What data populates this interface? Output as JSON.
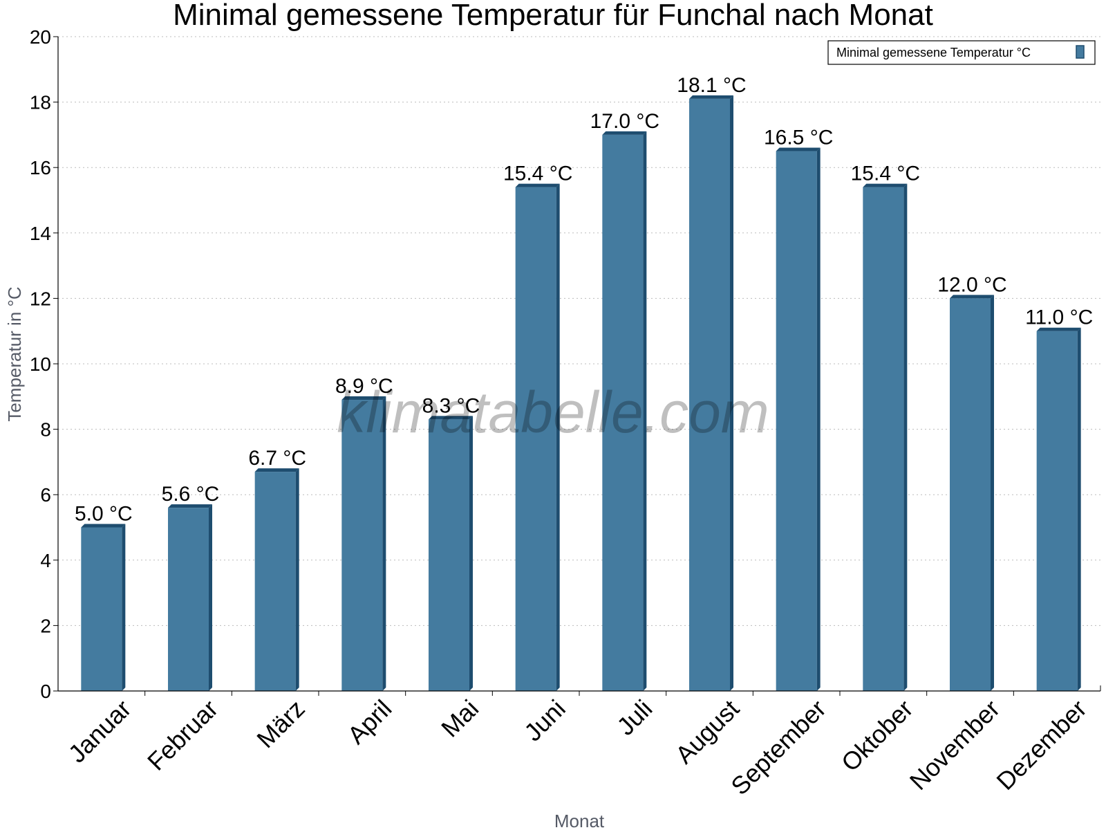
{
  "chart_data": {
    "type": "bar",
    "title": "Minimal gemessene Temperatur für Funchal nach Monat",
    "xlabel": "Monat",
    "ylabel": "Temperatur in °C",
    "ylim": [
      0,
      20
    ],
    "yticks": [
      0,
      2,
      4,
      6,
      8,
      10,
      12,
      14,
      16,
      18,
      20
    ],
    "grid": true,
    "legend_position": "top-right",
    "unit_suffix": " °C",
    "categories": [
      "Januar",
      "Februar",
      "März",
      "April",
      "Mai",
      "Juni",
      "Juli",
      "August",
      "September",
      "Oktober",
      "November",
      "Dezember"
    ],
    "series": [
      {
        "name": "Minimal gemessene Temperatur °C",
        "color": "#447b9f",
        "values": [
          5.0,
          5.6,
          6.7,
          8.9,
          8.3,
          15.4,
          17.0,
          18.1,
          16.5,
          15.4,
          12.0,
          11.0
        ]
      }
    ],
    "data_labels": [
      "5.0 °C",
      "5.6 °C",
      "6.7 °C",
      "8.9 °C",
      "8.3 °C",
      "15.4 °C",
      "17.0 °C",
      "18.1 °C",
      "16.5 °C",
      "15.4 °C",
      "12.0 °C",
      "11.0 °C"
    ]
  },
  "watermark": "klimatabelle.com",
  "colors": {
    "bar": "#447b9f",
    "bar_side": "#1e4d6f",
    "grid": "#bbbbbb",
    "axis": "#000000"
  }
}
